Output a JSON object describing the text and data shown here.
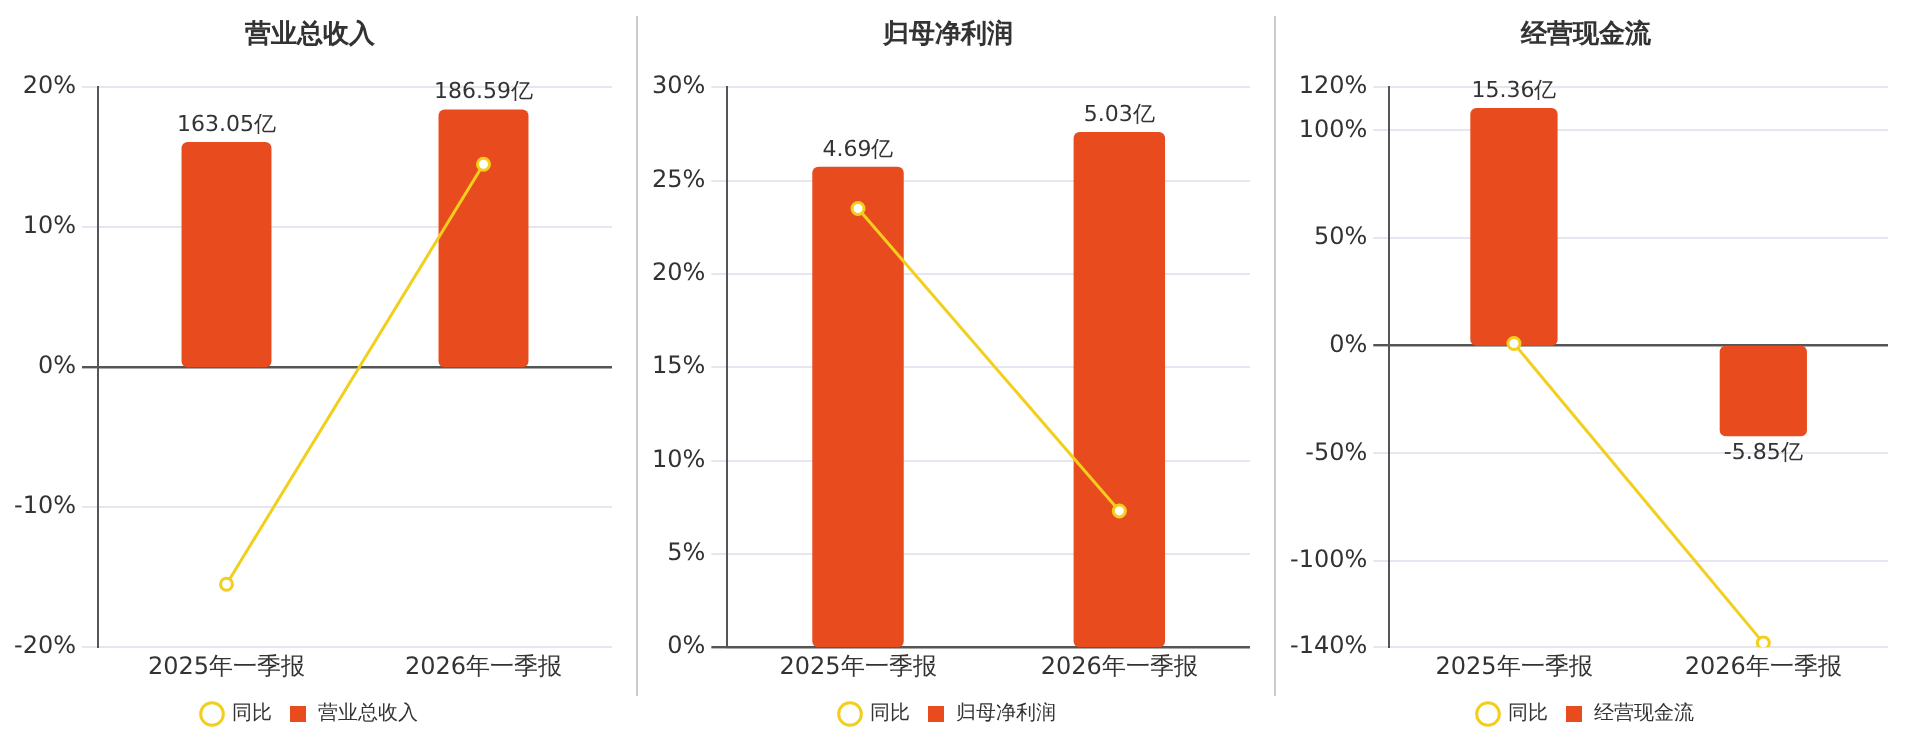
{
  "chart_data": [
    {
      "type": "bar",
      "title": "营业总收入",
      "categories": [
        "2025年一季报",
        "2026年一季报"
      ],
      "series": [
        {
          "name": "营业总收入",
          "color": "#e84c1e",
          "axis": "y2",
          "values": [
            163.05,
            186.59
          ],
          "value_labels": [
            "163.05亿",
            "186.59亿"
          ]
        },
        {
          "name": "同比",
          "type": "line",
          "color": "#f2cf1d",
          "values": [
            -15.5,
            14.5
          ]
        }
      ],
      "ylim": [
        -20,
        20
      ],
      "yticks": [
        {
          "value": -20,
          "label": "-20%"
        },
        {
          "value": -10,
          "label": "-10%"
        },
        {
          "value": 0,
          "label": "0%"
        },
        {
          "value": 10,
          "label": "10%"
        },
        {
          "value": 20,
          "label": "20%"
        }
      ],
      "grid": "y",
      "legend": "bottom",
      "marker": "circle"
    },
    {
      "type": "bar",
      "title": "归母净利润",
      "categories": [
        "2025年一季报",
        "2026年一季报"
      ],
      "series": [
        {
          "name": "归母净利润",
          "color": "#e84c1e",
          "axis": "y2",
          "values": [
            4.69,
            5.03
          ],
          "value_labels": [
            "4.69亿",
            "5.03亿"
          ]
        },
        {
          "name": "同比",
          "type": "line",
          "color": "#f2cf1d",
          "values": [
            23.5,
            7.3
          ]
        }
      ],
      "ylim": [
        0,
        30
      ],
      "yticks": [
        {
          "value": 0,
          "label": "0%"
        },
        {
          "value": 5,
          "label": "5%"
        },
        {
          "value": 10,
          "label": "10%"
        },
        {
          "value": 15,
          "label": "15%"
        },
        {
          "value": 20,
          "label": "20%"
        },
        {
          "value": 25,
          "label": "25%"
        },
        {
          "value": 30,
          "label": "30%"
        }
      ],
      "grid": "y",
      "legend": "bottom",
      "marker": "circle"
    },
    {
      "type": "bar",
      "title": "经营现金流",
      "categories": [
        "2025年一季报",
        "2026年一季报"
      ],
      "series": [
        {
          "name": "经营现金流",
          "color": "#e84c1e",
          "axis": "y2",
          "values": [
            15.36,
            -5.85
          ],
          "value_labels": [
            "15.36亿",
            "-5.85亿"
          ]
        },
        {
          "name": "同比",
          "type": "line",
          "color": "#f2cf1d",
          "values": [
            1,
            -138
          ]
        }
      ],
      "ylim": [
        -140,
        120
      ],
      "yticks": [
        {
          "value": -140,
          "label": "-140%"
        },
        {
          "value": -100,
          "label": "-100%"
        },
        {
          "value": -50,
          "label": "-50%"
        },
        {
          "value": 0,
          "label": "0%"
        },
        {
          "value": 50,
          "label": "50%"
        },
        {
          "value": 100,
          "label": "100%"
        },
        {
          "value": 120,
          "label": "120%"
        }
      ],
      "grid": "y",
      "legend": "bottom",
      "marker": "circle"
    }
  ]
}
